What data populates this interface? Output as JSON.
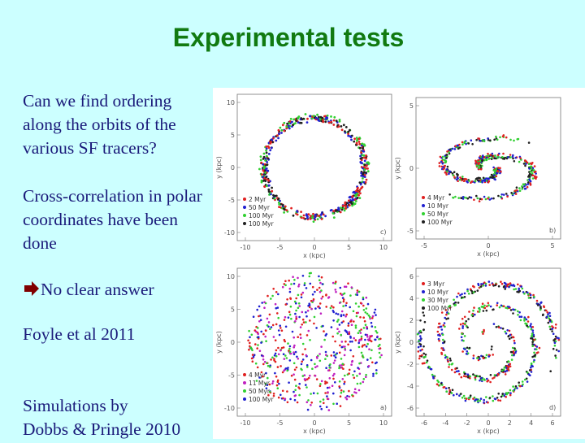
{
  "slide": {
    "title": "Experimental tests",
    "bullets": [
      {
        "lines": [
          "Can we find ordering",
          "along the orbits of the",
          "various SF tracers?"
        ]
      },
      {
        "lines": [
          "Cross-correlation in polar",
          "coordinates have been",
          "done"
        ]
      },
      {
        "lines": [
          "No clear answer"
        ],
        "icon": "right-arrow-icon"
      },
      {
        "lines": [
          "Foyle et al 2011"
        ]
      },
      {
        "lines": [
          "Simulations by",
          "Dobbs & Pringle 2010"
        ]
      }
    ],
    "colors": {
      "title": "#117a11",
      "text": "#1a1a7a",
      "background": "#ccffff",
      "arrow": "#800000"
    }
  },
  "figure": {
    "xlabel": "x (kpc)",
    "ylabel": "y (kpc)",
    "panels": [
      {
        "id": "c",
        "label": "c)",
        "yticks": [
          "10",
          "5",
          "0",
          "-5",
          "-10"
        ],
        "xticks": [
          "-10",
          "-5",
          "0",
          "5",
          "10"
        ],
        "legend": [
          "2 Myr",
          "50 Myr",
          "100 Myr",
          "100 Myr"
        ],
        "colors": [
          "#e02020",
          "#2020d0",
          "#30d030",
          "#202020"
        ]
      },
      {
        "id": "b",
        "label": "b)",
        "yticks": [
          "5",
          "0",
          "-5"
        ],
        "xticks": [
          "-5",
          "0",
          "5"
        ],
        "legend": [
          "4 Myr",
          "10 Myr",
          "50 Myr",
          "100 Myr"
        ],
        "colors": [
          "#e02020",
          "#2020d0",
          "#30d030",
          "#202020"
        ]
      },
      {
        "id": "a",
        "label": "a)",
        "yticks": [
          "10",
          "5",
          "0",
          "-5",
          "-10"
        ],
        "xticks": [
          "-10",
          "-5",
          "0",
          "5",
          "10"
        ],
        "legend": [
          "4 Myr",
          "11 Myr",
          "50 Myr",
          "100 Myr"
        ],
        "colors": [
          "#e02020",
          "#c020c0",
          "#30d030",
          "#2020d0"
        ]
      },
      {
        "id": "d",
        "label": "d)",
        "yticks": [
          "6",
          "4",
          "2",
          "0",
          "-2",
          "-4",
          "-6"
        ],
        "xticks": [
          "-6",
          "-4",
          "-2",
          "0",
          "2",
          "4",
          "6"
        ],
        "legend": [
          "3 Myr",
          "10 Myr",
          "30 Myr",
          "100 Myr"
        ],
        "colors": [
          "#e02020",
          "#2020d0",
          "#30d030",
          "#202020"
        ]
      }
    ]
  }
}
